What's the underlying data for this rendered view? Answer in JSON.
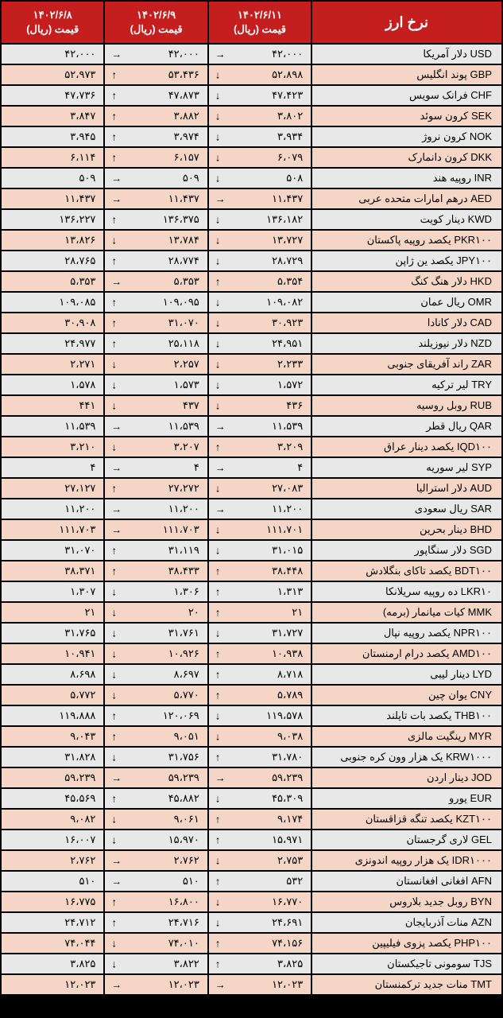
{
  "header": {
    "title": "نرخ ارز",
    "date1": "۱۴۰۲/۶/۱۱",
    "date2": "۱۴۰۲/۶/۹",
    "date3": "۱۴۰۲/۶/۸",
    "price_label": "قیمت (ریال)"
  },
  "colors": {
    "header_bg": "#c41e1e",
    "header_fg": "#ffffff",
    "border": "#000000",
    "even_row": "#e8e8e8",
    "odd_row": "#f5d5c5"
  },
  "rows": [
    {
      "name": "USD دلار آمریکا",
      "p1": "۴۲،۰۰۰",
      "a1": "→",
      "p2": "۴۲،۰۰۰",
      "a2": "→",
      "p3": "۴۲،۰۰۰"
    },
    {
      "name": "GBP پوند انگلیس",
      "p1": "۵۲،۸۹۸",
      "a1": "↓",
      "p2": "۵۳،۴۳۶",
      "a2": "↑",
      "p3": "۵۲،۹۷۳"
    },
    {
      "name": "CHF فرانک سویس",
      "p1": "۴۷،۴۲۳",
      "a1": "↓",
      "p2": "۴۷،۸۷۳",
      "a2": "↑",
      "p3": "۴۷،۷۳۶"
    },
    {
      "name": "SEK کرون سوئد",
      "p1": "۳،۸۰۲",
      "a1": "↓",
      "p2": "۳،۸۸۲",
      "a2": "↑",
      "p3": "۳،۸۴۷"
    },
    {
      "name": "NOK کرون نروژ",
      "p1": "۳،۹۳۴",
      "a1": "↓",
      "p2": "۳،۹۷۴",
      "a2": "↑",
      "p3": "۳،۹۴۵"
    },
    {
      "name": "DKK کرون دانمارک",
      "p1": "۶،۰۷۹",
      "a1": "↓",
      "p2": "۶،۱۵۷",
      "a2": "↑",
      "p3": "۶،۱۱۴"
    },
    {
      "name": "INR روپیه هند",
      "p1": "۵۰۸",
      "a1": "↓",
      "p2": "۵۰۹",
      "a2": "→",
      "p3": "۵۰۹"
    },
    {
      "name": "AED درهم امارات متحده عربی",
      "p1": "۱۱،۴۳۷",
      "a1": "→",
      "p2": "۱۱،۴۳۷",
      "a2": "→",
      "p3": "۱۱،۴۳۷"
    },
    {
      "name": "KWD دینار کویت",
      "p1": "۱۳۶،۱۸۲",
      "a1": "↓",
      "p2": "۱۳۶،۳۷۵",
      "a2": "↑",
      "p3": "۱۳۶،۲۲۷"
    },
    {
      "name": "PKR۱۰۰ یکصد روپیه پاکستان",
      "p1": "۱۳،۷۲۷",
      "a1": "↓",
      "p2": "۱۳،۷۸۴",
      "a2": "↓",
      "p3": "۱۳،۸۲۶"
    },
    {
      "name": "JPY۱۰۰ یکصد ین ژاپن",
      "p1": "۲۸،۷۲۹",
      "a1": "↓",
      "p2": "۲۸،۷۷۴",
      "a2": "↑",
      "p3": "۲۸،۷۶۵"
    },
    {
      "name": "HKD دلار هنگ کنگ",
      "p1": "۵،۳۵۴",
      "a1": "↑",
      "p2": "۵،۳۵۳",
      "a2": "→",
      "p3": "۵،۳۵۳"
    },
    {
      "name": "OMR ریال عمان",
      "p1": "۱۰۹،۰۸۲",
      "a1": "↓",
      "p2": "۱۰۹،۰۹۵",
      "a2": "↑",
      "p3": "۱۰۹،۰۸۵"
    },
    {
      "name": "CAD دلار کانادا",
      "p1": "۳۰،۹۲۳",
      "a1": "↓",
      "p2": "۳۱،۰۷۰",
      "a2": "↑",
      "p3": "۳۰،۹۰۸"
    },
    {
      "name": "NZD دلار نیوزیلند",
      "p1": "۲۴،۹۵۱",
      "a1": "↓",
      "p2": "۲۵،۱۱۸",
      "a2": "↑",
      "p3": "۲۴،۹۷۷"
    },
    {
      "name": "ZAR راند آفریقای جنوبی",
      "p1": "۲،۲۳۳",
      "a1": "↓",
      "p2": "۲،۲۵۷",
      "a2": "↓",
      "p3": "۲،۲۷۱"
    },
    {
      "name": "TRY لیر ترکیه",
      "p1": "۱،۵۷۲",
      "a1": "↓",
      "p2": "۱،۵۷۳",
      "a2": "↓",
      "p3": "۱،۵۷۸"
    },
    {
      "name": "RUB روبل روسیه",
      "p1": "۴۳۶",
      "a1": "↓",
      "p2": "۴۳۷",
      "a2": "↓",
      "p3": "۴۴۱"
    },
    {
      "name": "QAR ریال قطر",
      "p1": "۱۱،۵۳۹",
      "a1": "→",
      "p2": "۱۱،۵۳۹",
      "a2": "→",
      "p3": "۱۱،۵۳۹"
    },
    {
      "name": "IQD۱۰۰ یکصد دینار عراق",
      "p1": "۳،۲۰۹",
      "a1": "↑",
      "p2": "۳،۲۰۷",
      "a2": "↓",
      "p3": "۳،۲۱۰"
    },
    {
      "name": "SYP لیر سوریه",
      "p1": "۴",
      "a1": "→",
      "p2": "۴",
      "a2": "→",
      "p3": "۴"
    },
    {
      "name": "AUD دلار استرالیا",
      "p1": "۲۷،۰۸۳",
      "a1": "↓",
      "p2": "۲۷،۲۷۲",
      "a2": "↑",
      "p3": "۲۷،۱۲۷"
    },
    {
      "name": "SAR ریال سعودی",
      "p1": "۱۱،۲۰۰",
      "a1": "→",
      "p2": "۱۱،۲۰۰",
      "a2": "→",
      "p3": "۱۱،۲۰۰"
    },
    {
      "name": "BHD دینار بحرین",
      "p1": "۱۱۱،۷۰۱",
      "a1": "↓",
      "p2": "۱۱۱،۷۰۳",
      "a2": "→",
      "p3": "۱۱۱،۷۰۳"
    },
    {
      "name": "SGD دلار سنگاپور",
      "p1": "۳۱،۰۱۵",
      "a1": "↓",
      "p2": "۳۱،۱۱۹",
      "a2": "↑",
      "p3": "۳۱،۰۷۰"
    },
    {
      "name": "BDT۱۰۰ یکصد تاکای بنگلادش",
      "p1": "۳۸،۴۴۸",
      "a1": "↑",
      "p2": "۳۸،۴۳۳",
      "a2": "↑",
      "p3": "۳۸،۳۷۱"
    },
    {
      "name": "LKR۱۰ ده روپیه سریلانکا",
      "p1": "۱،۳۱۳",
      "a1": "↑",
      "p2": "۱،۳۰۶",
      "a2": "↓",
      "p3": "۱،۳۰۷"
    },
    {
      "name": "MMK کیات میانمار (برمه)",
      "p1": "۲۱",
      "a1": "↑",
      "p2": "۲۰",
      "a2": "↓",
      "p3": "۲۱"
    },
    {
      "name": "NPR۱۰۰ یکصد روپیه نپال",
      "p1": "۳۱،۷۲۷",
      "a1": "↓",
      "p2": "۳۱،۷۶۱",
      "a2": "↓",
      "p3": "۳۱،۷۶۵"
    },
    {
      "name": "AMD۱۰۰ یکصد درام ارمنستان",
      "p1": "۱۰،۹۳۸",
      "a1": "↑",
      "p2": "۱۰،۹۲۶",
      "a2": "↓",
      "p3": "۱۰،۹۴۱"
    },
    {
      "name": "LYD دینار لیبی",
      "p1": "۸،۷۱۸",
      "a1": "↑",
      "p2": "۸،۶۹۷",
      "a2": "↓",
      "p3": "۸،۶۹۸"
    },
    {
      "name": "CNY یوان چین",
      "p1": "۵،۷۸۹",
      "a1": "↑",
      "p2": "۵،۷۷۰",
      "a2": "↓",
      "p3": "۵،۷۷۲"
    },
    {
      "name": "THB۱۰۰ یکصد بات تایلند",
      "p1": "۱۱۹،۵۷۸",
      "a1": "↓",
      "p2": "۱۲۰،۰۶۹",
      "a2": "↑",
      "p3": "۱۱۹،۸۸۸"
    },
    {
      "name": "MYR رینگیت مالزی",
      "p1": "۹،۰۳۸",
      "a1": "↓",
      "p2": "۹،۰۵۱",
      "a2": "↑",
      "p3": "۹،۰۴۳"
    },
    {
      "name": "KRW۱۰۰۰ یک هزار وون کره جنوبی",
      "p1": "۳۱،۷۸۰",
      "a1": "↑",
      "p2": "۳۱،۷۵۶",
      "a2": "↓",
      "p3": "۳۱،۸۲۸"
    },
    {
      "name": "JOD دینار اردن",
      "p1": "۵۹،۲۳۹",
      "a1": "→",
      "p2": "۵۹،۲۳۹",
      "a2": "→",
      "p3": "۵۹،۲۳۹"
    },
    {
      "name": "EUR یورو",
      "p1": "۴۵،۳۰۹",
      "a1": "↓",
      "p2": "۴۵،۸۸۲",
      "a2": "↑",
      "p3": "۴۵،۵۶۹"
    },
    {
      "name": "KZT۱۰۰ یکصد تنگه قزاقستان",
      "p1": "۹،۱۷۴",
      "a1": "↑",
      "p2": "۹،۰۶۱",
      "a2": "↓",
      "p3": "۹،۰۸۲"
    },
    {
      "name": "GEL لاری گرجستان",
      "p1": "۱۵،۹۷۱",
      "a1": "↑",
      "p2": "۱۵،۹۷۰",
      "a2": "↓",
      "p3": "۱۶،۰۰۷"
    },
    {
      "name": "IDR۱۰۰۰ یک هزار روپیه اندونزی",
      "p1": "۲،۷۵۳",
      "a1": "↓",
      "p2": "۲،۷۶۲",
      "a2": "→",
      "p3": "۲،۷۶۲"
    },
    {
      "name": "AFN افغانی افغانستان",
      "p1": "۵۳۲",
      "a1": "↑",
      "p2": "۵۱۰",
      "a2": "→",
      "p3": "۵۱۰"
    },
    {
      "name": "BYN روبل جدید بلاروس",
      "p1": "۱۶،۷۷۰",
      "a1": "↓",
      "p2": "۱۶،۸۰۰",
      "a2": "↑",
      "p3": "۱۶،۷۷۵"
    },
    {
      "name": "AZN منات آذربایجان",
      "p1": "۲۴،۶۹۱",
      "a1": "↓",
      "p2": "۲۴،۷۱۶",
      "a2": "↑",
      "p3": "۲۴،۷۱۲"
    },
    {
      "name": "PHP۱۰۰ یکصد پزوی فیلیپین",
      "p1": "۷۴،۱۵۶",
      "a1": "↑",
      "p2": "۷۴،۰۱۰",
      "a2": "↓",
      "p3": "۷۴،۰۴۴"
    },
    {
      "name": "TJS سومونی تاجیکستان",
      "p1": "۳،۸۲۵",
      "a1": "↑",
      "p2": "۳،۸۲۲",
      "a2": "↓",
      "p3": "۳،۸۲۵"
    },
    {
      "name": "TMT منات جدید ترکمنستان",
      "p1": "۱۲،۰۲۳",
      "a1": "→",
      "p2": "۱۲،۰۲۳",
      "a2": "→",
      "p3": "۱۲،۰۲۳"
    }
  ]
}
